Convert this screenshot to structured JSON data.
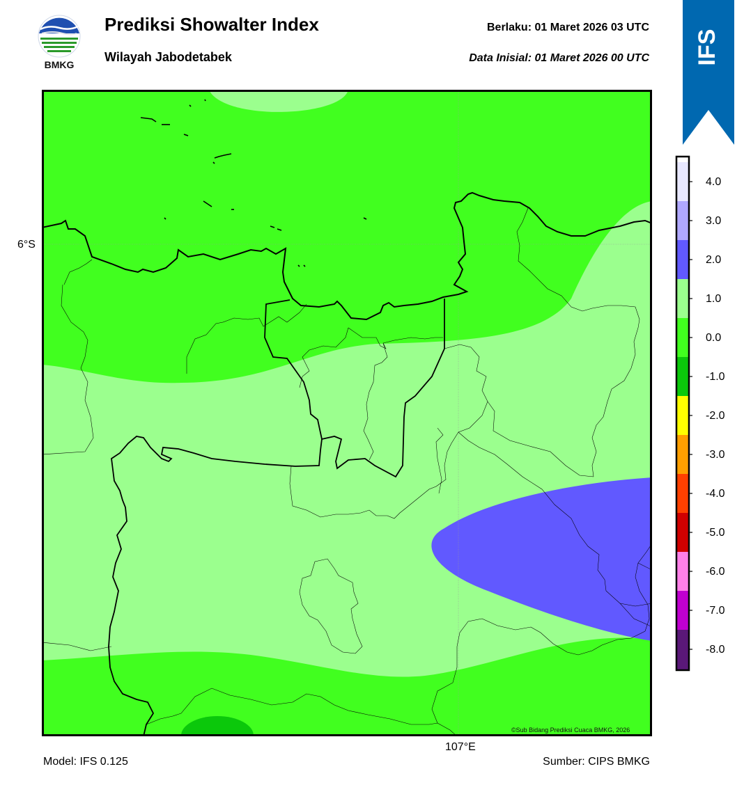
{
  "header": {
    "title": "Prediksi Showalter Index",
    "subtitle": "Wilayah Jabodetabek",
    "valid_time": "Berlaku:  01 Maret 2026 03 UTC",
    "init_time": "Data Inisial:  01 Maret 2026 00 UTC"
  },
  "logo": {
    "text": "BMKG"
  },
  "ribbon": {
    "text": "IFS",
    "color": "#0068b0"
  },
  "map": {
    "lat_label": "6°S",
    "lon_label": "107°E",
    "credit": "©Sub Bidang Prediksi Cuaca BMKG, 2026",
    "colors": {
      "land_boundary": "#000000",
      "zone_minus1_0": "#41ff1f",
      "zone_0_1": "#9bff8e",
      "zone_1_2": "#6159ff",
      "zone_minus2_minus1": "#0bc80b"
    }
  },
  "footer": {
    "model": "Model: IFS 0.125",
    "source": "Sumber: CIPS BMKG"
  },
  "colorbar": {
    "ticks": [
      "4.0",
      "3.0",
      "2.0",
      "1.0",
      "0.0",
      "-1.0",
      "-2.0",
      "-3.0",
      "-4.0",
      "-5.0",
      "-6.0",
      "-7.0",
      "-8.0"
    ],
    "colors": [
      "#e8e8ff",
      "#b0a8ff",
      "#6159ff",
      "#9bff8e",
      "#41ff1f",
      "#0bc80b",
      "#ffff00",
      "#ff9f00",
      "#ff4000",
      "#d00000",
      "#ff80e8",
      "#c000d0",
      "#5a1878"
    ]
  }
}
